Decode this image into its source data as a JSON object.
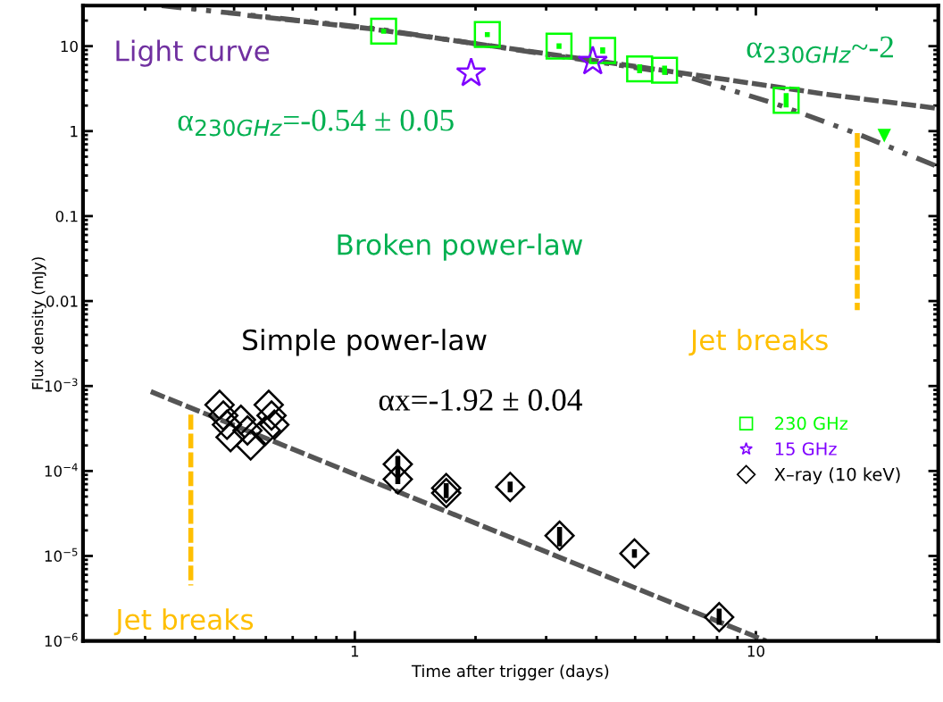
{
  "chart_data": {
    "type": "scatter",
    "xlabel": "Time after trigger (days)",
    "ylabel": "Flux density (mJy)",
    "log": "xy",
    "xlim": [
      0.21,
      28.5
    ],
    "ylim": [
      1e-06,
      30
    ],
    "xticks": [
      1,
      10
    ],
    "yticks": [
      {
        "value": 1e-06,
        "label": "10$^{−6}$"
      },
      {
        "value": 1e-05,
        "label": "10$^{−5}$"
      },
      {
        "value": 0.0001,
        "label": "10$^{−4}$"
      },
      {
        "value": 0.001,
        "label": "10$^{−3}$"
      },
      0.01,
      0.1,
      1,
      10
    ],
    "grid": false,
    "legend": "right",
    "series": [
      {
        "name": "230 GHz",
        "color": "#00ff00",
        "marker": "square",
        "x": [
          1.18,
          2.14,
          3.23,
          4.15,
          5.13,
          5.92,
          11.9
        ],
        "values": [
          15,
          13.7,
          10,
          8.9,
          5.4,
          5.2,
          2.3
        ],
        "errors": [
          [
            14,
            16
          ],
          [
            12.8,
            14.6
          ],
          [
            9.3,
            10.8
          ],
          [
            8.2,
            9.7
          ],
          [
            4.8,
            6.1
          ],
          [
            4.6,
            5.9
          ],
          [
            1.9,
            2.8
          ]
        ]
      },
      {
        "name": "15 GHz",
        "color": "#7f00ff",
        "marker": "star",
        "x": [
          1.95,
          3.92
        ],
        "values": [
          4.8,
          6.6
        ]
      },
      {
        "name": "X–ray (10 keV)",
        "color": "#000000",
        "marker": "diamond",
        "x": [
          0.46,
          0.47,
          0.48,
          0.49,
          0.52,
          0.54,
          0.55,
          0.56,
          0.58,
          0.6,
          0.61,
          0.62,
          0.63,
          1.28,
          1.28,
          1.69,
          1.69,
          2.44,
          3.24,
          4.98,
          8.1
        ],
        "values": [
          0.0006,
          0.00045,
          0.00035,
          0.00025,
          0.0004,
          0.0003,
          0.0002,
          null,
          null,
          0.0003,
          0.0006,
          0.00045,
          0.00035,
          0.00012,
          8e-05,
          6.3e-05,
          5.5e-05,
          6.5e-05,
          1.73e-05,
          1.07e-05,
          1.9e-06
        ],
        "errors": [
          null,
          null,
          null,
          null,
          null,
          null,
          null,
          null,
          null,
          null,
          null,
          null,
          null,
          [
            7e-05,
            0.00015
          ],
          null,
          [
            4.8e-05,
            7.2e-05
          ],
          null,
          [
            5.6e-05,
            7.5e-05
          ],
          [
            1.3e-05,
            2.2e-05
          ],
          [
            9.5e-06,
            1.2e-05
          ],
          [
            1.55e-06,
            2.4e-06
          ]
        ]
      },
      {
        "color": "#00ff00",
        "marker": "triangle",
        "x": [
          20.9
        ],
        "values": [
          0.9
        ]
      },
      {
        "type": "line",
        "color": "#555555",
        "line_style": "dotted",
        "x": [
          0.33,
          1.1,
          6.4,
          11.2,
          17.9,
          28.5
        ],
        "values": [
          30,
          16.3,
          4.7,
          2.1,
          0.93,
          0.38
        ]
      },
      {
        "type": "line",
        "color": "#555555",
        "line_style": "dashed",
        "x": [
          0.54,
          1.1,
          6.4,
          15.1,
          28.5
        ],
        "values": [
          23,
          16,
          4.9,
          2.7,
          1.85
        ]
      },
      {
        "type": "line",
        "color": "#555555",
        "line_style": "dashed",
        "x": [
          0.31,
          10.6
        ],
        "values": [
          0.00086,
          1e-06
        ]
      },
      {
        "type": "line",
        "color": "#ffbf00",
        "line_style": "dashed",
        "x": [
          0.39,
          0.39
        ],
        "values": [
          0.00046,
          4.5e-06
        ]
      },
      {
        "type": "line",
        "color": "#ffbf00",
        "line_style": "dashed",
        "x": [
          17.9,
          17.9
        ],
        "values": [
          0.95,
          0.0078
        ]
      }
    ],
    "annotations": [
      "Light curve",
      "α$_{230GHz}$=-0.54 ± 0.05",
      "α$_{230GHz}$~-2",
      "Broken power-law",
      "Simple power-law",
      "αx=-1.92 ± 0.04",
      "Jet breaks",
      "Jet breaks"
    ]
  }
}
